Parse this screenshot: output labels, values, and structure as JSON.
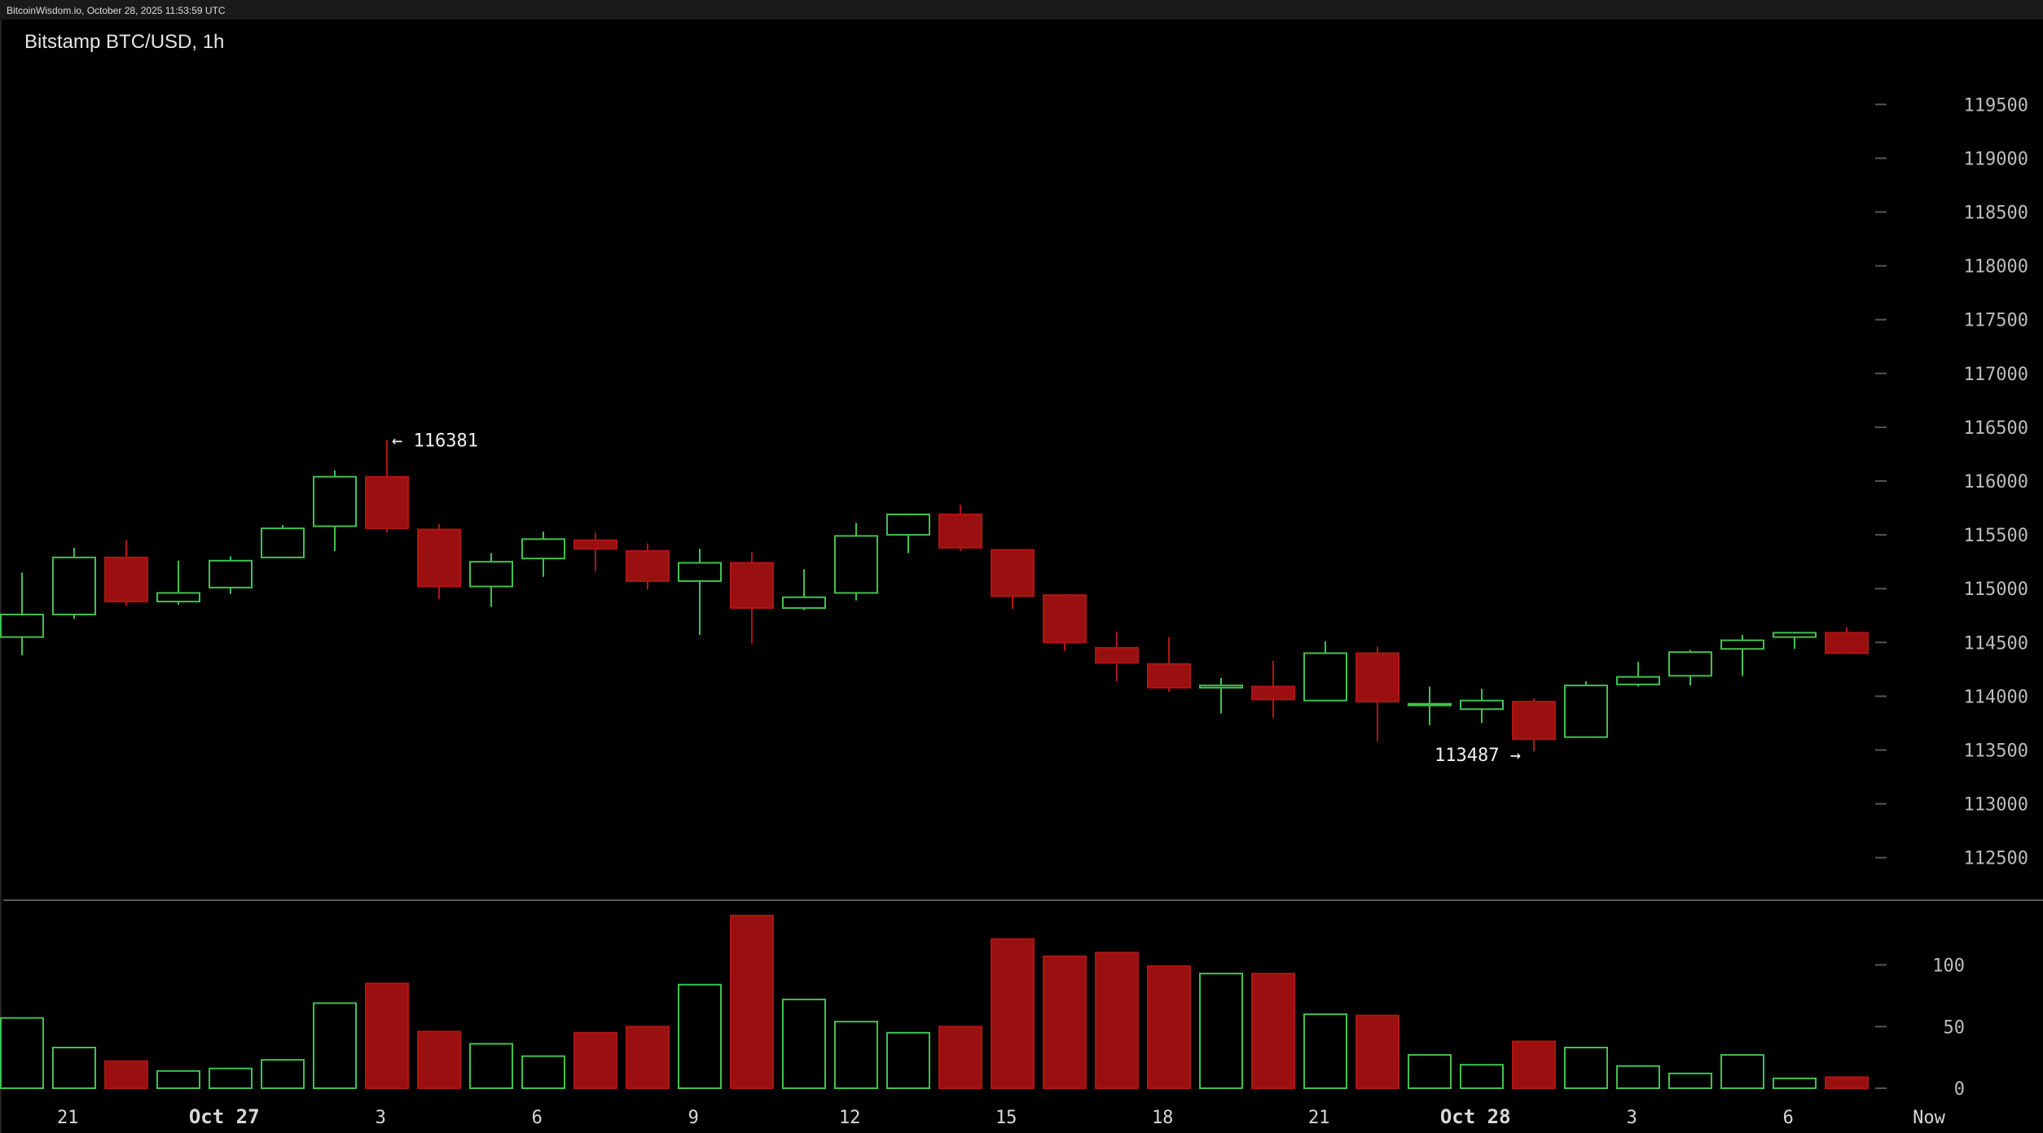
{
  "topbar": {
    "text": "BitcoinWisdom.io, October 28, 2025 11:53:59 UTC"
  },
  "chart_data": {
    "type": "candlestick",
    "title": "Bitstamp BTC/USD, 1h",
    "colors": {
      "up": "#3fc24f",
      "down": "#b01414",
      "down_fill": "#9a1010",
      "separator": "#5a5a5a",
      "tick": "#555555"
    },
    "price_axis": {
      "ticks": [
        112500,
        113000,
        113500,
        114000,
        114500,
        115000,
        115500,
        116000,
        116500,
        117000,
        117500,
        118000,
        118500,
        119000,
        119500
      ]
    },
    "volume_axis": {
      "ticks": [
        0,
        50,
        100
      ]
    },
    "x_labels": [
      {
        "label": "21",
        "index": 1.3,
        "bold": false
      },
      {
        "label": "Oct 27",
        "index": 4.3,
        "bold": true
      },
      {
        "label": "3",
        "index": 7.3,
        "bold": false
      },
      {
        "label": "6",
        "index": 10.3,
        "bold": false
      },
      {
        "label": "9",
        "index": 13.3,
        "bold": false
      },
      {
        "label": "12",
        "index": 16.3,
        "bold": false
      },
      {
        "label": "15",
        "index": 19.3,
        "bold": false
      },
      {
        "label": "18",
        "index": 22.3,
        "bold": false
      },
      {
        "label": "21",
        "index": 25.3,
        "bold": false
      },
      {
        "label": "Oct 28",
        "index": 28.3,
        "bold": true
      },
      {
        "label": "3",
        "index": 31.3,
        "bold": false
      },
      {
        "label": "6",
        "index": 34.3,
        "bold": false
      },
      {
        "label": "Now",
        "index": 37.0,
        "bold": false
      }
    ],
    "candles": [
      {
        "o": 114550,
        "h": 115150,
        "l": 114380,
        "c": 114760,
        "v": 57
      },
      {
        "o": 114760,
        "h": 115380,
        "l": 114720,
        "c": 115290,
        "v": 33
      },
      {
        "o": 115290,
        "h": 115450,
        "l": 114840,
        "c": 114880,
        "v": 22
      },
      {
        "o": 114880,
        "h": 115260,
        "l": 114850,
        "c": 114960,
        "v": 14
      },
      {
        "o": 115010,
        "h": 115300,
        "l": 114950,
        "c": 115260,
        "v": 16
      },
      {
        "o": 115290,
        "h": 115590,
        "l": 115290,
        "c": 115560,
        "v": 23
      },
      {
        "o": 115580,
        "h": 116100,
        "l": 115350,
        "c": 116040,
        "v": 69
      },
      {
        "o": 116040,
        "h": 116381,
        "l": 115520,
        "c": 115560,
        "v": 85
      },
      {
        "o": 115550,
        "h": 115600,
        "l": 114900,
        "c": 115020,
        "v": 46
      },
      {
        "o": 115020,
        "h": 115330,
        "l": 114830,
        "c": 115250,
        "v": 36
      },
      {
        "o": 115280,
        "h": 115530,
        "l": 115110,
        "c": 115460,
        "v": 26
      },
      {
        "o": 115450,
        "h": 115520,
        "l": 115160,
        "c": 115370,
        "v": 45
      },
      {
        "o": 115350,
        "h": 115420,
        "l": 114990,
        "c": 115070,
        "v": 50
      },
      {
        "o": 115070,
        "h": 115370,
        "l": 114570,
        "c": 115240,
        "v": 84
      },
      {
        "o": 115240,
        "h": 115340,
        "l": 114490,
        "c": 114820,
        "v": 140
      },
      {
        "o": 114820,
        "h": 115180,
        "l": 114800,
        "c": 114920,
        "v": 72
      },
      {
        "o": 114960,
        "h": 115610,
        "l": 114890,
        "c": 115490,
        "v": 54
      },
      {
        "o": 115500,
        "h": 115700,
        "l": 115330,
        "c": 115690,
        "v": 45
      },
      {
        "o": 115690,
        "h": 115780,
        "l": 115350,
        "c": 115380,
        "v": 50
      },
      {
        "o": 115360,
        "h": 115370,
        "l": 114810,
        "c": 114930,
        "v": 121
      },
      {
        "o": 114940,
        "h": 114950,
        "l": 114420,
        "c": 114500,
        "v": 107
      },
      {
        "o": 114450,
        "h": 114600,
        "l": 114140,
        "c": 114310,
        "v": 110
      },
      {
        "o": 114300,
        "h": 114550,
        "l": 114040,
        "c": 114080,
        "v": 99
      },
      {
        "o": 114080,
        "h": 114170,
        "l": 113840,
        "c": 114100,
        "v": 93
      },
      {
        "o": 114090,
        "h": 114330,
        "l": 113800,
        "c": 113970,
        "v": 93
      },
      {
        "o": 113960,
        "h": 114510,
        "l": 113960,
        "c": 114400,
        "v": 60
      },
      {
        "o": 114400,
        "h": 114460,
        "l": 113580,
        "c": 113950,
        "v": 59
      },
      {
        "o": 113930,
        "h": 114090,
        "l": 113730,
        "c": 113930,
        "v": 27
      },
      {
        "o": 113880,
        "h": 114070,
        "l": 113750,
        "c": 113960,
        "v": 19
      },
      {
        "o": 113950,
        "h": 113980,
        "l": 113487,
        "c": 113600,
        "v": 38
      },
      {
        "o": 113620,
        "h": 114140,
        "l": 113620,
        "c": 114100,
        "v": 33
      },
      {
        "o": 114110,
        "h": 114320,
        "l": 114090,
        "c": 114180,
        "v": 18
      },
      {
        "o": 114190,
        "h": 114430,
        "l": 114100,
        "c": 114410,
        "v": 12
      },
      {
        "o": 114440,
        "h": 114570,
        "l": 114190,
        "c": 114520,
        "v": 27
      },
      {
        "o": 114550,
        "h": 114600,
        "l": 114440,
        "c": 114590,
        "v": 8
      },
      {
        "o": 114590,
        "h": 114640,
        "l": 114390,
        "c": 114400,
        "v": 9
      }
    ],
    "annotations": [
      {
        "text": "← 116381",
        "index": 7,
        "price": 116381,
        "side": "right"
      },
      {
        "text": "113487 →",
        "index": 29,
        "price": 113487,
        "side": "left"
      }
    ]
  }
}
